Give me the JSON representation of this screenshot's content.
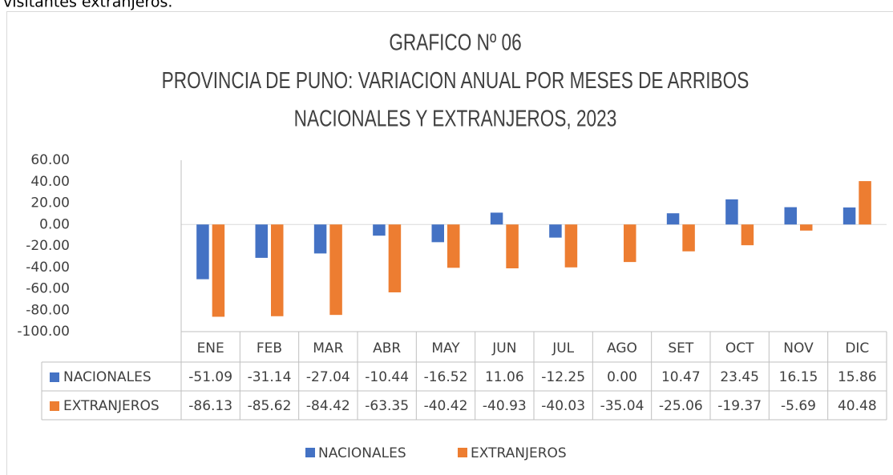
{
  "intro_text": "visitantes extranjeros.",
  "chart_data": {
    "type": "bar",
    "title_lines": [
      "GRAFICO Nº 06",
      "PROVINCIA DE PUNO: VARIACION ANUAL POR MESES DE ARRIBOS",
      "NACIONALES Y EXTRANJEROS, 2023"
    ],
    "categories": [
      "ENE",
      "FEB",
      "MAR",
      "ABR",
      "MAY",
      "JUN",
      "JUL",
      "AGO",
      "SET",
      "OCT",
      "NOV",
      "DIC"
    ],
    "series": [
      {
        "name": "NACIONALES",
        "color": "#4472c4",
        "values": [
          -51.09,
          -31.14,
          -27.04,
          -10.44,
          -16.52,
          11.06,
          -12.25,
          0,
          10.47,
          23.45,
          16.15,
          15.86
        ],
        "value_labels": [
          "-51.09",
          "-31.14",
          "-27.04",
          "-10.44",
          "-16.52",
          "11.06",
          "-12.25",
          "0.00",
          "10.47",
          "23.45",
          "16.15",
          "15.86"
        ]
      },
      {
        "name": "EXTRANJEROS",
        "color": "#ed7d31",
        "values": [
          -86.13,
          -85.62,
          -84.42,
          -63.35,
          -40.42,
          -40.93,
          -40.03,
          -35.04,
          -25.06,
          -19.37,
          -5.69,
          40.48
        ],
        "value_labels": [
          "-86.13",
          "-85.62",
          "-84.42",
          "-63.35",
          "-40.42",
          "-40.93",
          "-40.03",
          "-35.04",
          "-25.06",
          "-19.37",
          "-5.69",
          "40.48"
        ]
      }
    ],
    "ylim": [
      -100,
      60
    ],
    "yticks": [
      {
        "value": -100,
        "label": "-100.00"
      },
      {
        "value": -80,
        "label": "-80.00"
      },
      {
        "value": -60,
        "label": "-60.00"
      },
      {
        "value": -40,
        "label": "-40.00"
      },
      {
        "value": -20,
        "label": "-20.00"
      },
      {
        "value": 0,
        "label": "0.00"
      },
      {
        "value": 20,
        "label": "20.00"
      },
      {
        "value": 40,
        "label": "40.00"
      },
      {
        "value": 60,
        "label": "60.00"
      }
    ],
    "legend": "bottom"
  }
}
